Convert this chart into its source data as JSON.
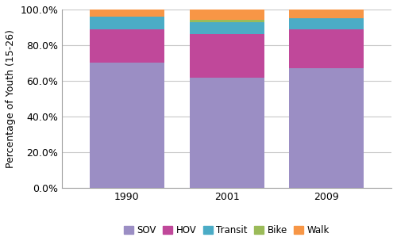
{
  "years": [
    "1990",
    "2001",
    "2009"
  ],
  "categories": [
    "SOV",
    "HOV",
    "Transit",
    "Bike",
    "Walk"
  ],
  "values": {
    "SOV": [
      70,
      62,
      67
    ],
    "HOV": [
      19,
      24,
      22
    ],
    "Transit": [
      7,
      7,
      6
    ],
    "Bike": [
      0,
      1,
      0
    ],
    "Walk": [
      4,
      6,
      5
    ]
  },
  "colors": {
    "SOV": "#9B8EC4",
    "HOV": "#C0489A",
    "Transit": "#4BACC6",
    "Bike": "#9BBB59",
    "Walk": "#F79646"
  },
  "ylabel": "Percentage of Youth (15-26)",
  "ylim": [
    0,
    100
  ],
  "yticks": [
    0,
    20,
    40,
    60,
    80,
    100
  ],
  "ytick_labels": [
    "0.0%",
    "20.0%",
    "40.0%",
    "60.0%",
    "80.0%",
    "100.0%"
  ],
  "bar_width": 0.75,
  "figsize": [
    5.0,
    3.04
  ],
  "dpi": 100,
  "background_color": "#FFFFFF",
  "grid_color": "#C8C8C8"
}
